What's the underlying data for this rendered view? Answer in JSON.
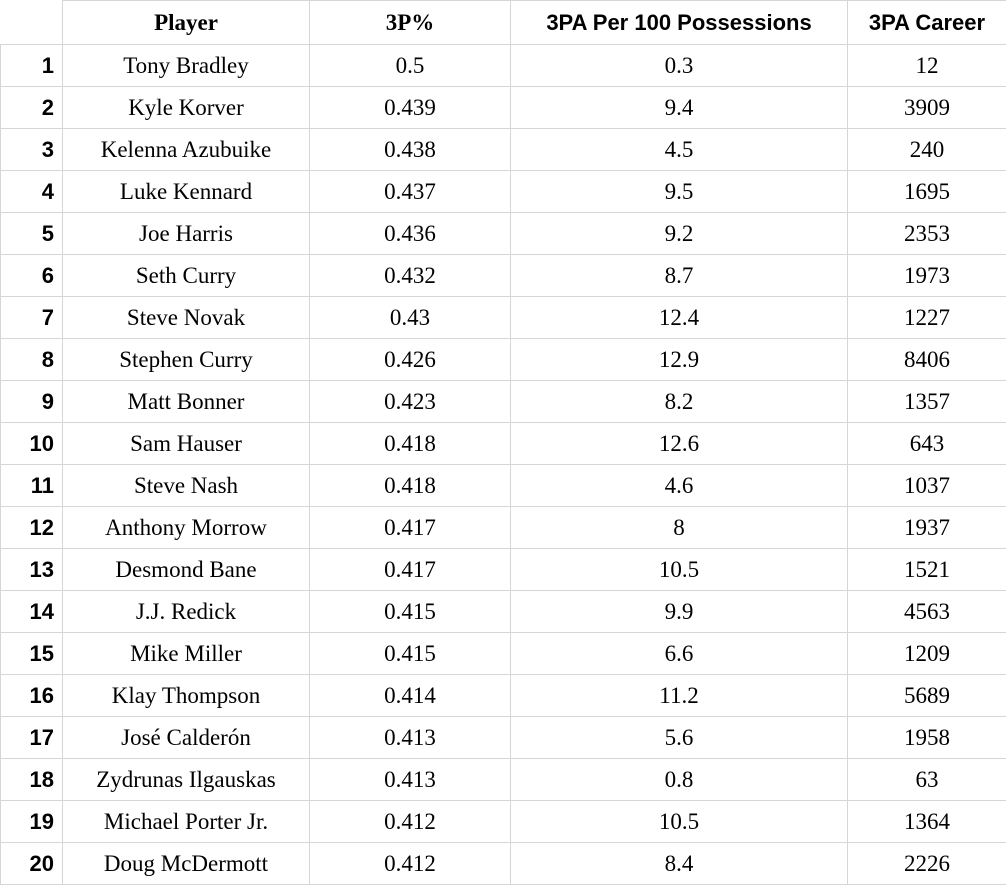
{
  "headers": [
    "Player",
    "3P%",
    "3PA Per 100 Possessions",
    "3PA Career"
  ],
  "rows": [
    {
      "rank": "1",
      "player": "Tony Bradley",
      "pct": "0.5",
      "per100": "0.3",
      "career": "12"
    },
    {
      "rank": "2",
      "player": "Kyle Korver",
      "pct": "0.439",
      "per100": "9.4",
      "career": "3909"
    },
    {
      "rank": "3",
      "player": "Kelenna Azubuike",
      "pct": "0.438",
      "per100": "4.5",
      "career": "240"
    },
    {
      "rank": "4",
      "player": "Luke Kennard",
      "pct": "0.437",
      "per100": "9.5",
      "career": "1695"
    },
    {
      "rank": "5",
      "player": "Joe Harris",
      "pct": "0.436",
      "per100": "9.2",
      "career": "2353"
    },
    {
      "rank": "6",
      "player": "Seth Curry",
      "pct": "0.432",
      "per100": "8.7",
      "career": "1973"
    },
    {
      "rank": "7",
      "player": "Steve Novak",
      "pct": "0.43",
      "per100": "12.4",
      "career": "1227"
    },
    {
      "rank": "8",
      "player": "Stephen Curry",
      "pct": "0.426",
      "per100": "12.9",
      "career": "8406"
    },
    {
      "rank": "9",
      "player": "Matt Bonner",
      "pct": "0.423",
      "per100": "8.2",
      "career": "1357"
    },
    {
      "rank": "10",
      "player": "Sam Hauser",
      "pct": "0.418",
      "per100": "12.6",
      "career": "643"
    },
    {
      "rank": "11",
      "player": "Steve Nash",
      "pct": "0.418",
      "per100": "4.6",
      "career": "1037"
    },
    {
      "rank": "12",
      "player": "Anthony Morrow",
      "pct": "0.417",
      "per100": "8",
      "career": "1937"
    },
    {
      "rank": "13",
      "player": "Desmond Bane",
      "pct": "0.417",
      "per100": "10.5",
      "career": "1521"
    },
    {
      "rank": "14",
      "player": "J.J. Redick",
      "pct": "0.415",
      "per100": "9.9",
      "career": "4563"
    },
    {
      "rank": "15",
      "player": "Mike Miller",
      "pct": "0.415",
      "per100": "6.6",
      "career": "1209"
    },
    {
      "rank": "16",
      "player": "Klay Thompson",
      "pct": "0.414",
      "per100": "11.2",
      "career": "5689"
    },
    {
      "rank": "17",
      "player": "José Calderón",
      "pct": "0.413",
      "per100": "5.6",
      "career": "1958"
    },
    {
      "rank": "18",
      "player": "Zydrunas Ilgauskas",
      "pct": "0.413",
      "per100": "0.8",
      "career": "63"
    },
    {
      "rank": "19",
      "player": "Michael Porter Jr.",
      "pct": "0.412",
      "per100": "10.5",
      "career": "1364"
    },
    {
      "rank": "20",
      "player": "Doug McDermott",
      "pct": "0.412",
      "per100": "8.4",
      "career": "2226"
    }
  ]
}
